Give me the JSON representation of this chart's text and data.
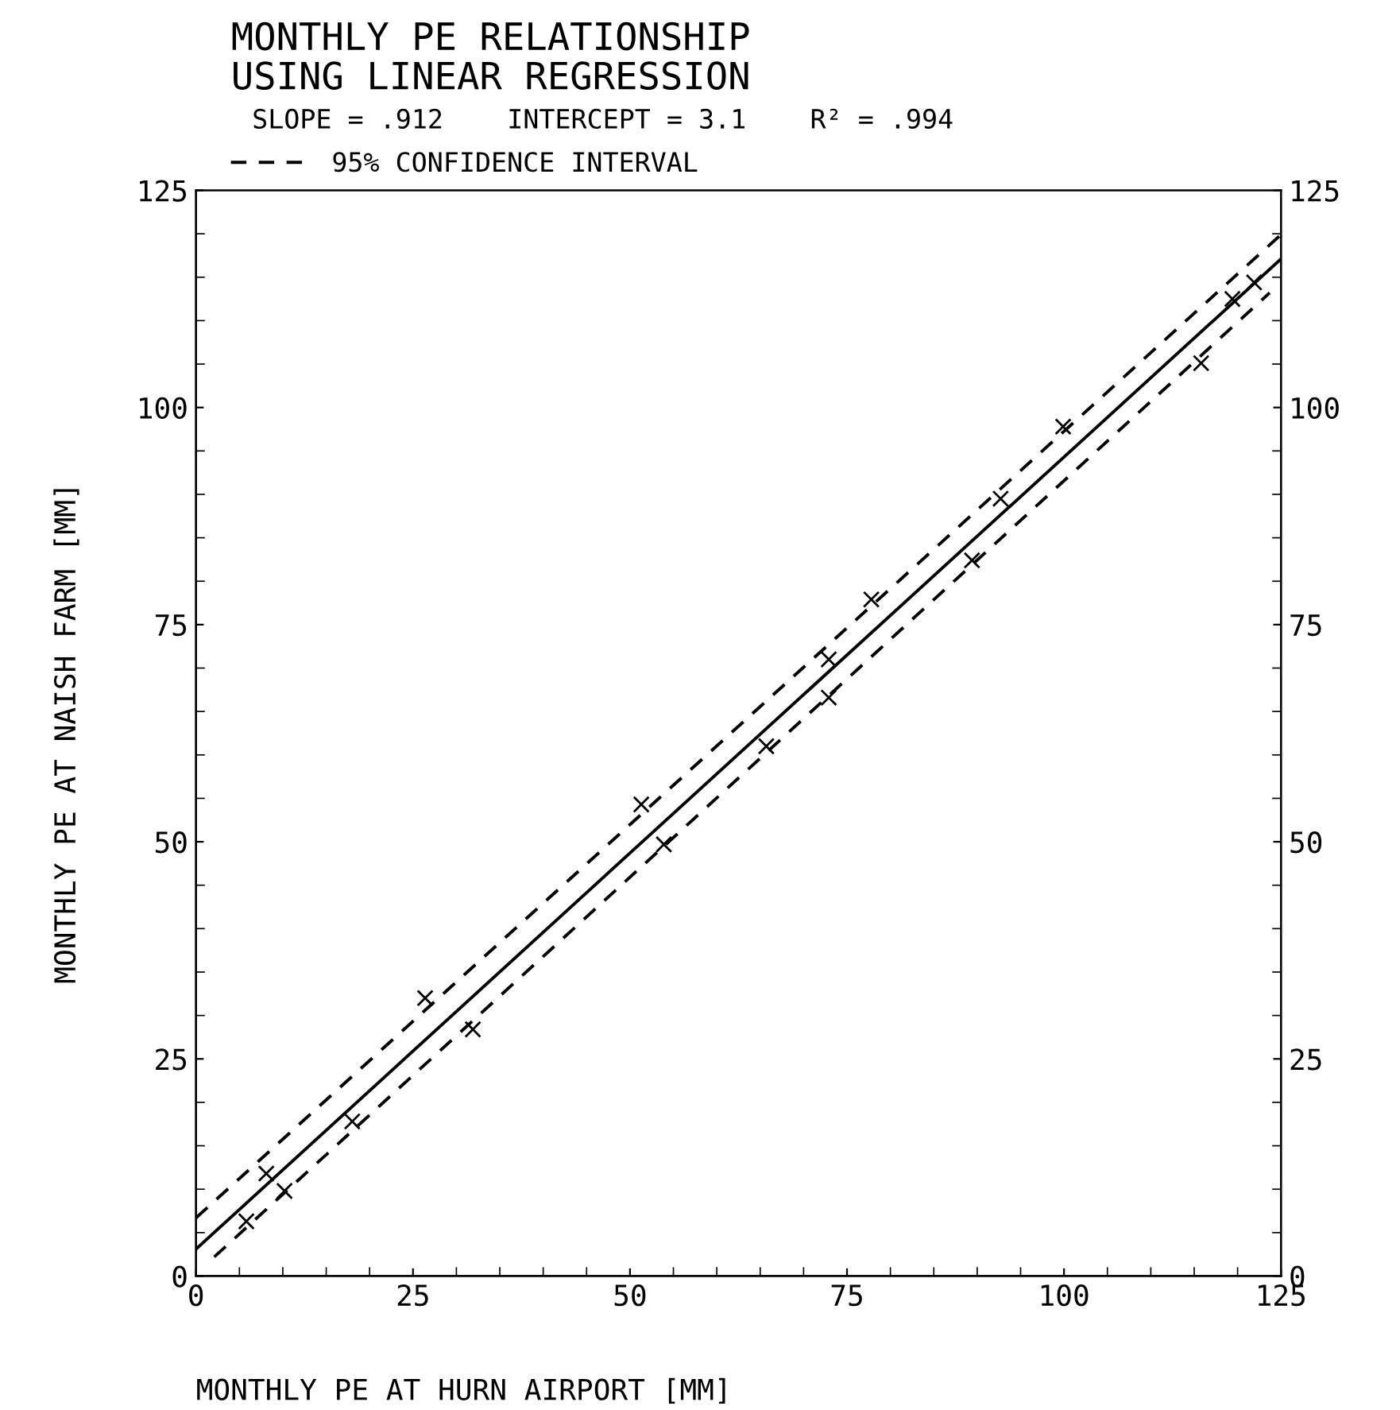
{
  "chart_data": {
    "type": "scatter",
    "title": "MONTHLY PE RELATIONSHIP\nUSING LINEAR REGRESSION",
    "subtitle": "SLOPE = .912    INTERCEPT = 3.1    R² = .994",
    "xlabel": "MONTHLY PE AT HURN AIRPORT [MM]",
    "ylabel": "MONTHLY PE AT NAISH FARM [MM]",
    "series": [
      {
        "color": "#000000",
        "marker": "cross",
        "x": [
          5.8,
          8.1,
          10.2,
          18.0,
          26.4,
          31.9,
          51.3,
          53.9,
          65.7,
          72.9,
          72.9,
          77.8,
          89.4,
          92.7,
          99.9,
          115.8,
          119.4,
          121.9
        ],
        "values": [
          6.3,
          11.8,
          9.8,
          17.8,
          32.0,
          28.4,
          54.3,
          49.7,
          61.0,
          71.0,
          66.6,
          77.9,
          82.4,
          89.5,
          97.8,
          105.1,
          112.5,
          114.4
        ]
      },
      {
        "type": "line",
        "color": "#000000",
        "line_style": "solid",
        "x": [
          0,
          125
        ],
        "values": [
          3.1,
          117.1
        ]
      },
      {
        "type": "line",
        "name": "95% CONFIDENCE INTERVAL",
        "color": "#000000",
        "line_style": "dashed",
        "x": [
          0,
          125
        ],
        "values": [
          6.7,
          119.9
        ]
      },
      {
        "type": "line",
        "color": "#000000",
        "line_style": "dashed",
        "x": [
          2.1,
          123.7
        ],
        "values": [
          2.2,
          113.2
        ]
      }
    ],
    "xlim": [
      0,
      125
    ],
    "xticks": [
      0,
      25,
      50,
      75,
      100,
      125
    ],
    "ylim": [
      0,
      125
    ],
    "yticks": [
      0,
      25,
      50,
      75,
      100,
      125
    ],
    "y2lim": [
      0,
      125
    ],
    "y2ticks": [
      0,
      25,
      50,
      75,
      100,
      125
    ],
    "grid": false,
    "legend": "top left"
  }
}
